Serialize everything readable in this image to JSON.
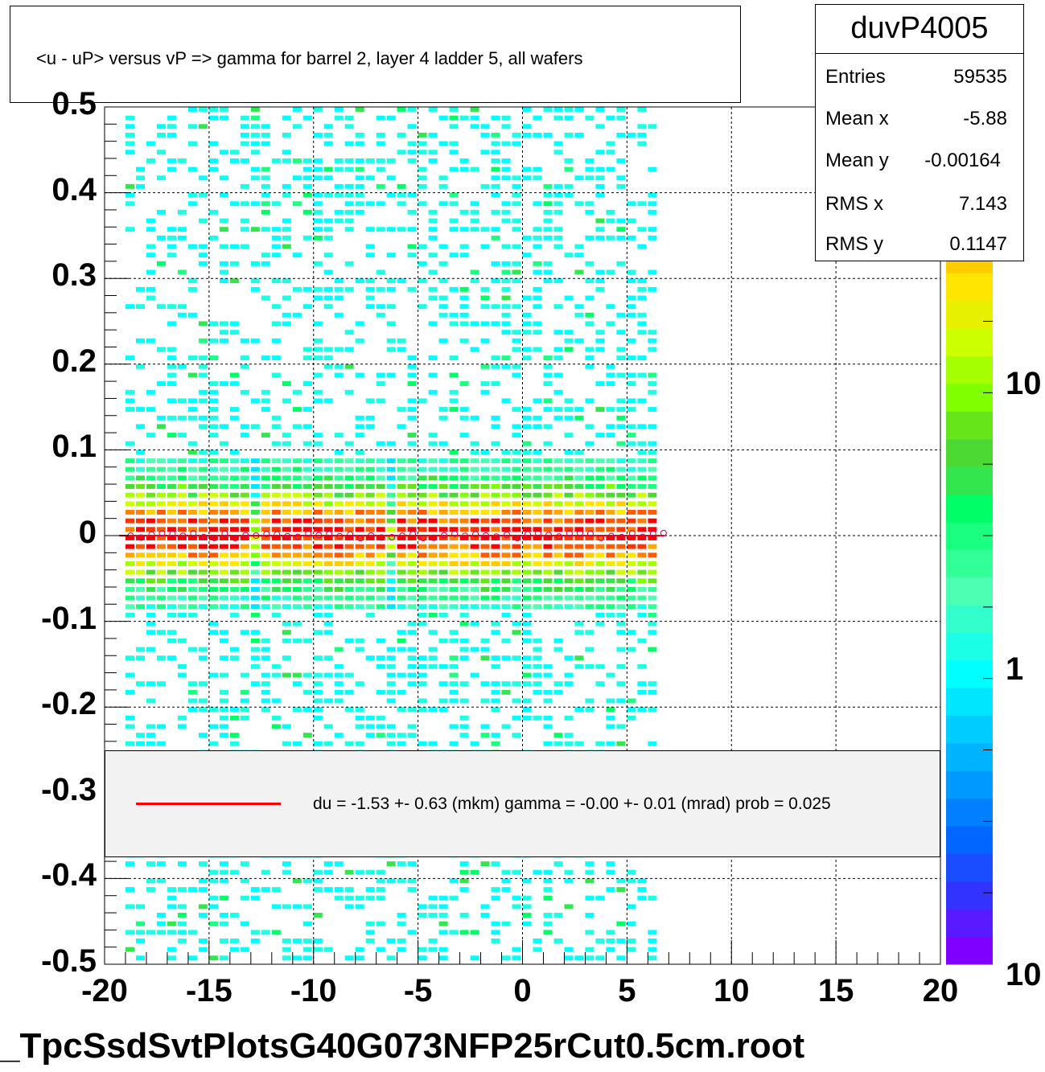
{
  "chart_data": {
    "type": "heatmap",
    "title": "<u - uP>       versus   vP =>  gamma for barrel 2, layer 4 ladder 5, all wafers",
    "xlabel": "",
    "ylabel": "",
    "xlim": [
      -20,
      20
    ],
    "ylim": [
      -0.5,
      0.5
    ],
    "x_ticks": [
      "-20",
      "-15",
      "-10",
      "-5",
      "0",
      "5",
      "10",
      "15",
      "20"
    ],
    "y_ticks": [
      "0.5",
      "0.4",
      "0.3",
      "0.2",
      "0.1",
      "0",
      "-0.1",
      "-0.2",
      "-0.3",
      "-0.4",
      "-0.5"
    ],
    "z_ticks": [
      "10",
      "1",
      "10"
    ],
    "z_scale": "log",
    "grid": true,
    "data_x_range": [
      -19,
      6.5
    ],
    "gaps_x": [
      -12.7,
      -6.2
    ],
    "profile_mean_y": 0.0,
    "fit": {
      "color": "#ff0000",
      "label": "du =   -1.53 +-  0.63 (mkm) gamma =   -0.00 +-  0.01 (mrad) prob = 0.025"
    },
    "stats": {
      "name": "duvP4005",
      "rows": [
        {
          "label": "Entries",
          "value": "59535"
        },
        {
          "label": "Mean x",
          "value": "-5.88"
        },
        {
          "label": "Mean y",
          "value": "-0.00164"
        },
        {
          "label": "RMS x",
          "value": "7.143"
        },
        {
          "label": "RMS y",
          "value": "0.1147"
        }
      ]
    },
    "palette": [
      "#7f00ff",
      "#5a1aff",
      "#3333ff",
      "#1a4dff",
      "#0066ff",
      "#0080ff",
      "#0099ff",
      "#00b3ff",
      "#00ccff",
      "#00e6ff",
      "#00ffff",
      "#1affe6",
      "#33ffcc",
      "#4dffb3",
      "#33ff99",
      "#1aff80",
      "#00ff66",
      "#33e64d",
      "#4dd933",
      "#66e61a",
      "#80ff00",
      "#a6ff00",
      "#ccff00",
      "#e6f000",
      "#ffe600",
      "#ffcc00",
      "#ffa600",
      "#ff8000",
      "#ff5a00",
      "#ff3300",
      "#ff0000"
    ]
  },
  "footer": {
    "filename": "_TpcSsdSvtPlotsG40G073NFP25rCut0.5cm.root"
  }
}
